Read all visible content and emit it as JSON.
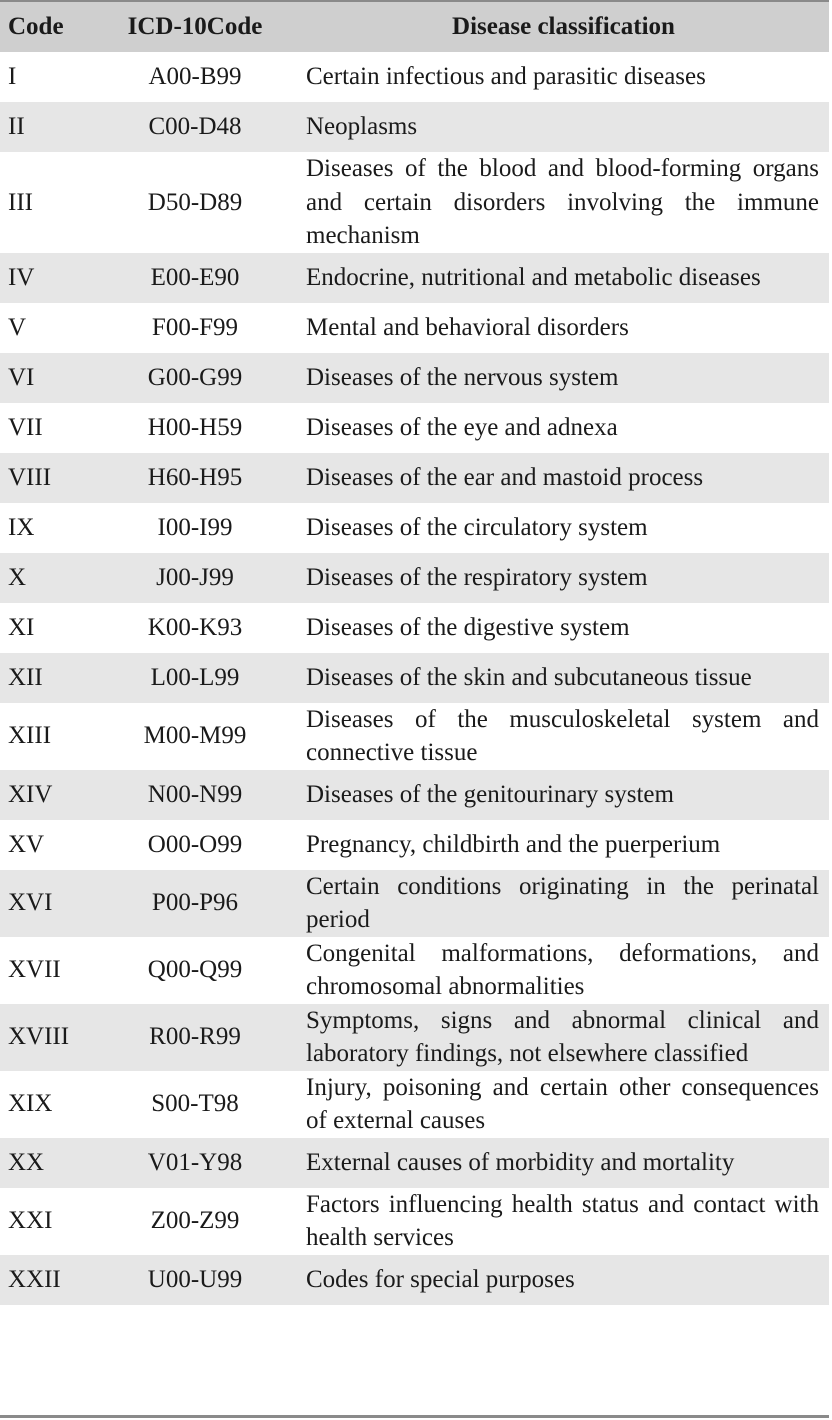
{
  "table": {
    "headers": {
      "code": "Code",
      "icd": "ICD-10Code",
      "classification": "Disease classification"
    },
    "rows": [
      {
        "code": "I",
        "icd": "A00-B99",
        "classification": "Certain infectious and parasitic diseases"
      },
      {
        "code": "II",
        "icd": "C00-D48",
        "classification": "Neoplasms"
      },
      {
        "code": "III",
        "icd": "D50-D89",
        "classification": "Diseases of the blood and blood-forming organs and certain disorders involving the immune mechanism"
      },
      {
        "code": "IV",
        "icd": "E00-E90",
        "classification": "Endocrine, nutritional and metabolic diseases"
      },
      {
        "code": "V",
        "icd": "F00-F99",
        "classification": "Mental and behavioral disorders"
      },
      {
        "code": "VI",
        "icd": "G00-G99",
        "classification": "Diseases of the nervous system"
      },
      {
        "code": "VII",
        "icd": "H00-H59",
        "classification": "Diseases of the eye and adnexa"
      },
      {
        "code": "VIII",
        "icd": "H60-H95",
        "classification": "Diseases of the ear and mastoid process"
      },
      {
        "code": "IX",
        "icd": "I00-I99",
        "classification": "Diseases of the circulatory system"
      },
      {
        "code": "X",
        "icd": "J00-J99",
        "classification": "Diseases of the respiratory system"
      },
      {
        "code": "XI",
        "icd": "K00-K93",
        "classification": "Diseases of the digestive system"
      },
      {
        "code": "XII",
        "icd": "L00-L99",
        "classification": "Diseases of the skin and subcutaneous tissue"
      },
      {
        "code": "XIII",
        "icd": "M00-M99",
        "classification": "Diseases of the musculoskeletal system and connective tissue"
      },
      {
        "code": "XIV",
        "icd": "N00-N99",
        "classification": "Diseases of the genitourinary system"
      },
      {
        "code": "XV",
        "icd": "O00-O99",
        "classification": "Pregnancy, childbirth and the puerperium"
      },
      {
        "code": "XVI",
        "icd": "P00-P96",
        "classification": "Certain conditions originating in the perinatal period"
      },
      {
        "code": "XVII",
        "icd": "Q00-Q99",
        "classification": "Congenital malformations, deformations, and chromosomal abnormalities"
      },
      {
        "code": "XVIII",
        "icd": "R00-R99",
        "classification": "Symptoms, signs and abnormal clinical and laboratory findings, not elsewhere classified"
      },
      {
        "code": "XIX",
        "icd": "S00-T98",
        "classification": "Injury, poisoning and certain other consequences of external causes"
      },
      {
        "code": "XX",
        "icd": "V01-Y98",
        "classification": "External causes of morbidity and mortality"
      },
      {
        "code": "XXI",
        "icd": "Z00-Z99",
        "classification": "Factors influencing health status and contact with health services"
      },
      {
        "code": "XXII",
        "icd": "U00-U99",
        "classification": "Codes for special purposes"
      }
    ]
  }
}
